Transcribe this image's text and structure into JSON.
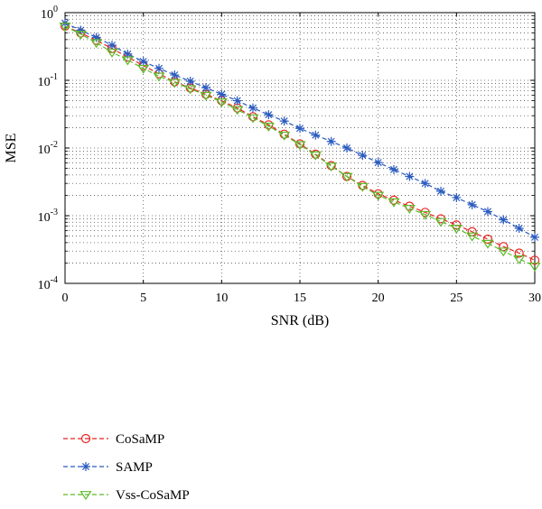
{
  "chart_data": {
    "type": "line",
    "xlabel": "SNR (dB)",
    "ylabel": "MSE",
    "xlim": [
      0,
      30
    ],
    "ylim": [
      0.0001,
      1
    ],
    "yscale": "log",
    "grid": true,
    "legend_position": "below",
    "x_ticks": [
      0,
      5,
      10,
      15,
      20,
      25,
      30
    ],
    "y_ticks": [
      {
        "value": 1,
        "base": "10",
        "exp": "0"
      },
      {
        "value": 0.1,
        "base": "10",
        "exp": "-1"
      },
      {
        "value": 0.01,
        "base": "10",
        "exp": "-2"
      },
      {
        "value": 0.001,
        "base": "10",
        "exp": "-3"
      },
      {
        "value": 0.0001,
        "base": "10",
        "exp": "-4"
      }
    ],
    "x": [
      0,
      1,
      2,
      3,
      4,
      5,
      6,
      7,
      8,
      9,
      10,
      11,
      12,
      13,
      14,
      15,
      16,
      17,
      18,
      19,
      20,
      21,
      22,
      23,
      24,
      25,
      26,
      27,
      28,
      29,
      30
    ],
    "series": [
      {
        "name": "CoSaMP",
        "color": "#e8231f",
        "marker": "circle",
        "values": [
          0.63,
          0.5,
          0.39,
          0.295,
          0.22,
          0.165,
          0.125,
          0.095,
          0.077,
          0.062,
          0.05,
          0.039,
          0.029,
          0.022,
          0.016,
          0.0115,
          0.0081,
          0.0055,
          0.0038,
          0.0028,
          0.0021,
          0.0017,
          0.00138,
          0.00112,
          0.0009,
          0.00073,
          0.00058,
          0.00045,
          0.00035,
          0.00028,
          0.00022
        ]
      },
      {
        "name": "SAMP",
        "color": "#2a5bbf",
        "marker": "asterisk",
        "values": [
          0.7,
          0.55,
          0.43,
          0.33,
          0.245,
          0.19,
          0.15,
          0.12,
          0.097,
          0.078,
          0.062,
          0.05,
          0.039,
          0.031,
          0.025,
          0.0195,
          0.0155,
          0.0125,
          0.01,
          0.0078,
          0.0061,
          0.0048,
          0.0038,
          0.003,
          0.0023,
          0.00185,
          0.00145,
          0.00115,
          0.00087,
          0.00065,
          0.00048
        ]
      },
      {
        "name": "Vss-CoSaMP",
        "color": "#5dbb2b",
        "marker": "triangle-down",
        "values": [
          0.63,
          0.48,
          0.36,
          0.26,
          0.2,
          0.15,
          0.115,
          0.093,
          0.075,
          0.06,
          0.048,
          0.037,
          0.028,
          0.021,
          0.0155,
          0.0112,
          0.0079,
          0.0054,
          0.0038,
          0.0027,
          0.002,
          0.0016,
          0.00128,
          0.00104,
          0.00082,
          0.00065,
          0.0005,
          0.00039,
          0.0003,
          0.00023,
          0.00018
        ]
      }
    ]
  }
}
